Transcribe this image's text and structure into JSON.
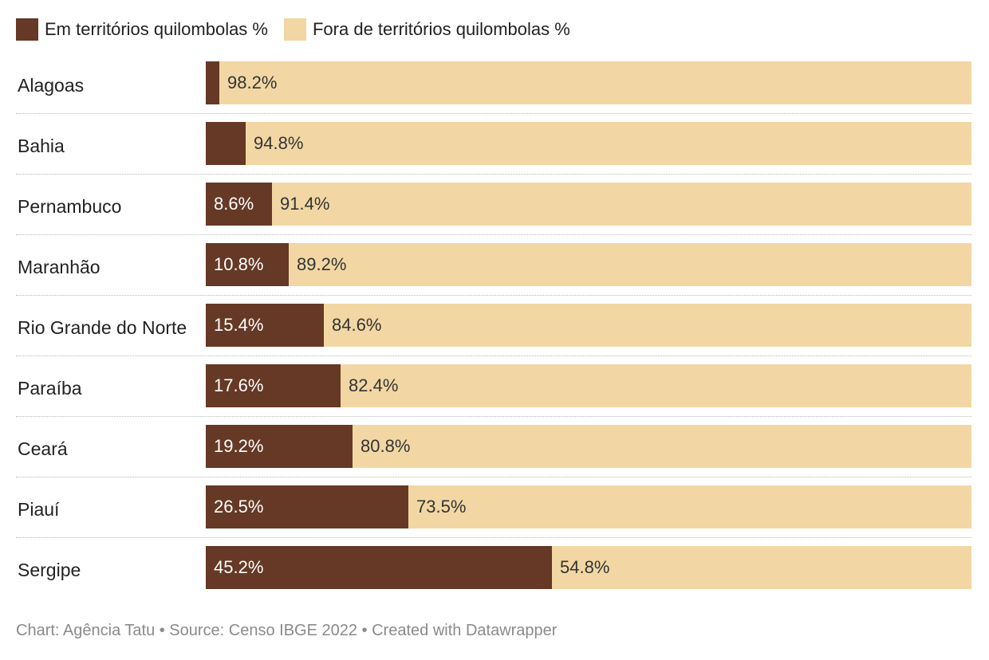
{
  "legend": {
    "inside_label": "Em territórios quilombolas %",
    "outside_label": "Fora de territórios quilombolas %"
  },
  "colors": {
    "inside": "#653925",
    "outside": "#f2d7a4",
    "inside_text": "#ffffff",
    "outside_text": "#333333"
  },
  "chart_data": {
    "type": "bar",
    "stacked": true,
    "orientation": "horizontal",
    "categories": [
      "Alagoas",
      "Bahia",
      "Pernambuco",
      "Maranhão",
      "Rio Grande do Norte",
      "Paraíba",
      "Ceará",
      "Piauí",
      "Sergipe"
    ],
    "series": [
      {
        "name": "Em territórios quilombolas %",
        "values": [
          1.8,
          5.2,
          8.6,
          10.8,
          15.4,
          17.6,
          19.2,
          26.5,
          45.2
        ],
        "labels": [
          "",
          "",
          "8.6%",
          "10.8%",
          "15.4%",
          "17.6%",
          "19.2%",
          "26.5%",
          "45.2%"
        ]
      },
      {
        "name": "Fora de territórios quilombolas %",
        "values": [
          98.2,
          94.8,
          91.4,
          89.2,
          84.6,
          82.4,
          80.8,
          73.5,
          54.8
        ],
        "labels": [
          "98.2%",
          "94.8%",
          "91.4%",
          "89.2%",
          "84.6%",
          "82.4%",
          "80.8%",
          "73.5%",
          "54.8%"
        ]
      }
    ],
    "xlim": [
      0,
      100
    ]
  },
  "footer": {
    "credit": "Chart: Agência Tatu • Source: Censo IBGE 2022 • Created with Datawrapper"
  }
}
